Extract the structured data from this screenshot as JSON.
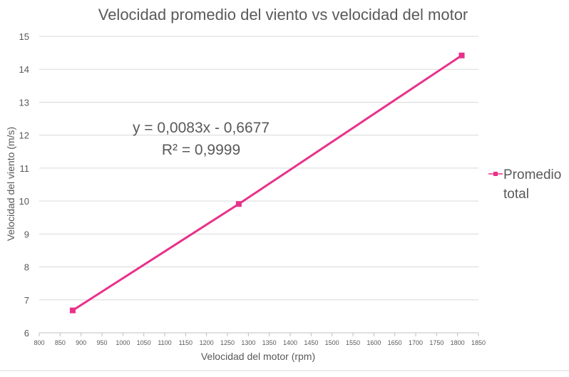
{
  "chart_data": {
    "type": "scatter",
    "title": "Velocidad promedio del viento vs velocidad del motor",
    "xlabel": "Velocidad del motor (rpm)",
    "ylabel": "Velocidad del viento (m/s)",
    "xlim": [
      800,
      1850
    ],
    "ylim": [
      6,
      15
    ],
    "x_ticks": [
      800,
      850,
      900,
      950,
      1000,
      1050,
      1100,
      1150,
      1200,
      1250,
      1300,
      1350,
      1400,
      1450,
      1500,
      1550,
      1600,
      1650,
      1700,
      1750,
      1800,
      1850
    ],
    "y_ticks": [
      6,
      7,
      8,
      9,
      10,
      11,
      12,
      13,
      14,
      15
    ],
    "grid": "horizontal",
    "legend_position": "right",
    "series": [
      {
        "name": "Promedio total",
        "color": "#E8318A",
        "marker": "square",
        "points": [
          {
            "x": 880,
            "y": 6.68
          },
          {
            "x": 1277,
            "y": 9.91
          },
          {
            "x": 1810,
            "y": 14.42
          }
        ]
      }
    ],
    "trendline": {
      "color": "#E8318A",
      "equation": "y = 0,0083x - 0,6677",
      "r_squared": "R² = 0,9999"
    }
  }
}
